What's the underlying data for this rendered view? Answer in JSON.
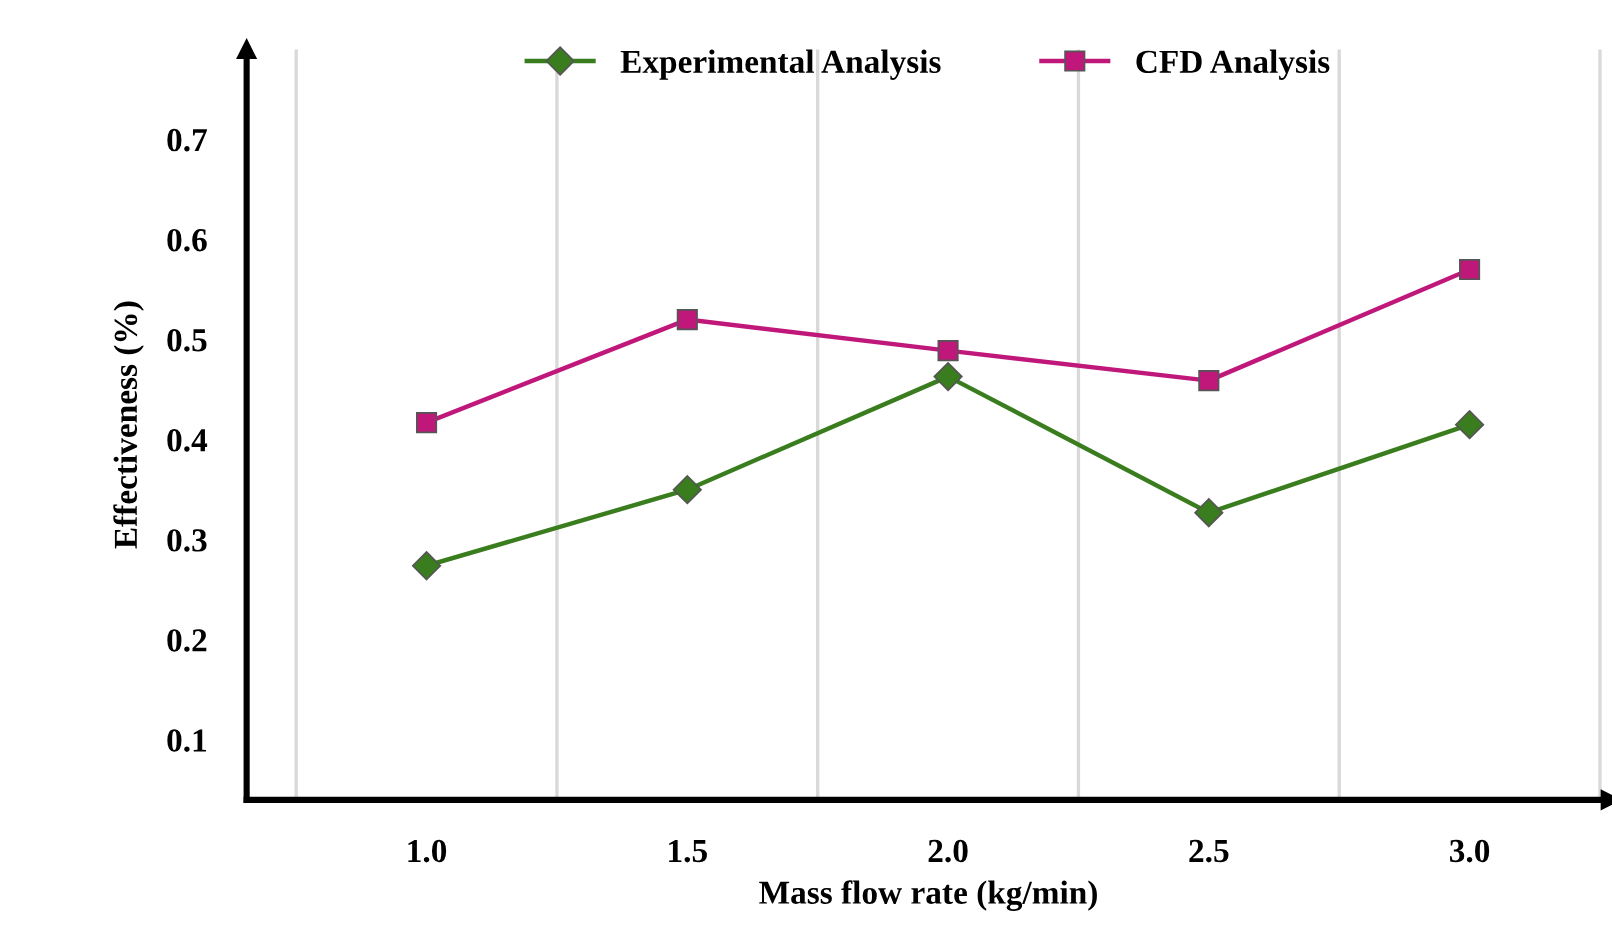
{
  "chart_data": {
    "type": "line",
    "xlabel": "Mass flow rate (kg/min)",
    "ylabel": "Effectiveness (%)",
    "categories": [
      "1.0",
      "1.5",
      "2.0",
      "2.5",
      "3.0"
    ],
    "series": [
      {
        "name": "Experimental Analysis",
        "color": "#3a7d1e",
        "marker": "diamond",
        "values": [
          0.274,
          0.35,
          0.463,
          0.327,
          0.415
        ]
      },
      {
        "name": "CFD Analysis",
        "color": "#c0187a",
        "marker": "square",
        "values": [
          0.417,
          0.52,
          0.489,
          0.459,
          0.57
        ]
      }
    ],
    "ylim": [
      0.04,
      0.79
    ],
    "yticks": [
      0.1,
      0.2,
      0.3,
      0.4,
      0.5,
      0.6,
      0.7
    ],
    "grid": "x",
    "legend": "top",
    "line_style": "solid"
  }
}
